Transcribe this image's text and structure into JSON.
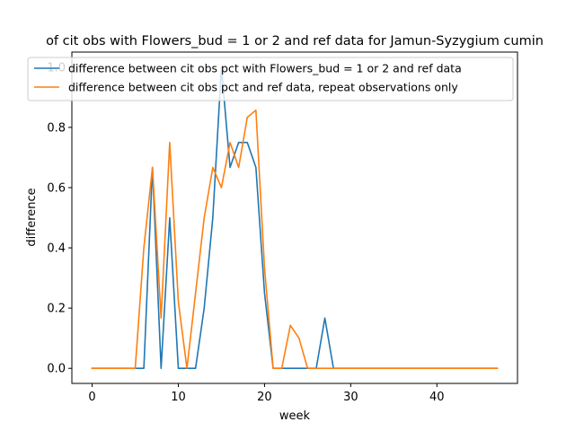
{
  "chart_data": {
    "type": "line",
    "title": "of cit obs with Flowers_bud = 1 or 2 and ref data for Jamun-Syzygium cumin",
    "xlabel": "week",
    "ylabel": "difference",
    "xlim": [
      -2.35,
      49.35
    ],
    "ylim": [
      -0.05,
      1.05
    ],
    "xticks": [
      0,
      10,
      20,
      30,
      40
    ],
    "yticks": [
      0.0,
      0.2,
      0.4,
      0.6,
      0.8,
      1.0
    ],
    "legend_position": "upper center",
    "grid": false,
    "x": [
      0,
      1,
      2,
      3,
      4,
      5,
      6,
      7,
      8,
      9,
      10,
      11,
      12,
      13,
      14,
      15,
      16,
      17,
      18,
      19,
      20,
      21,
      22,
      23,
      24,
      25,
      26,
      27,
      28,
      29,
      30,
      31,
      32,
      33,
      34,
      35,
      36,
      37,
      38,
      39,
      40,
      41,
      42,
      43,
      44,
      45,
      46,
      47
    ],
    "series": [
      {
        "name": "difference between cit obs pct with Flowers_bud = 1 or 2 and ref data",
        "color": "#1f77b4",
        "values": [
          0,
          0,
          0,
          0,
          0,
          0,
          0,
          0.667,
          0,
          0.5,
          0,
          0,
          0,
          0.2,
          0.5,
          1.0,
          0.667,
          0.75,
          0.75,
          0.667,
          0.25,
          0,
          0,
          0,
          0,
          0,
          0,
          0.167,
          0,
          0,
          0,
          0,
          0,
          0,
          0,
          0,
          0,
          0,
          0,
          0,
          0,
          0,
          0,
          0,
          0,
          0,
          0,
          0
        ]
      },
      {
        "name": "difference between cit obs pct and ref data, repeat observations only",
        "color": "#ff7f0e",
        "values": [
          0,
          0,
          0,
          0,
          0,
          0,
          0.4,
          0.667,
          0.167,
          0.75,
          0.222,
          0,
          0.25,
          0.5,
          0.667,
          0.6,
          0.75,
          0.667,
          0.833,
          0.857,
          0.333,
          0,
          0,
          0.143,
          0.1,
          0,
          0,
          0,
          0,
          0,
          0,
          0,
          0,
          0,
          0,
          0,
          0,
          0,
          0,
          0,
          0,
          0,
          0,
          0,
          0,
          0,
          0,
          0
        ]
      }
    ]
  }
}
